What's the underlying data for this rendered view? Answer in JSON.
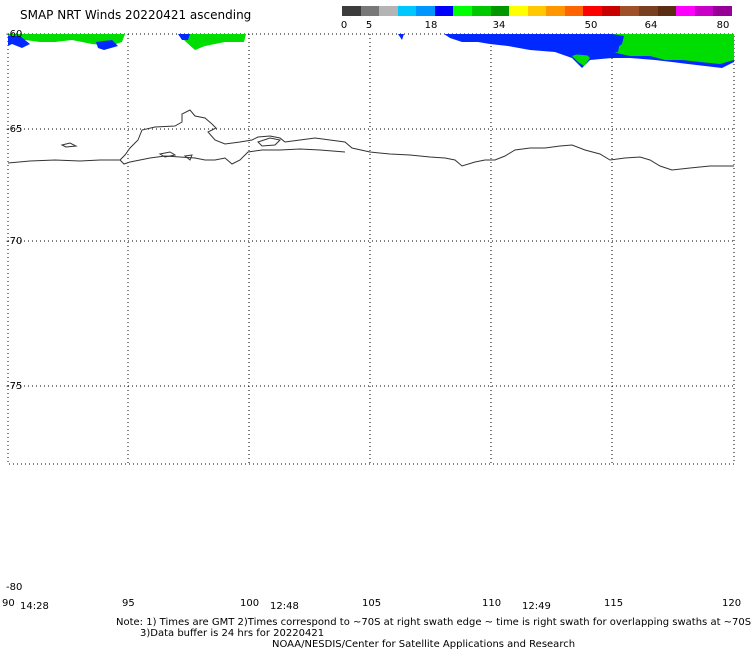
{
  "title": "SMAP NRT Winds 20220421 ascending",
  "legend": {
    "labels": [
      "0",
      "5",
      "18",
      "34",
      "50",
      "64",
      "80"
    ],
    "colors": [
      "#3c3c3c",
      "#787878",
      "#b4b4b4",
      "#00c8ff",
      "#0096ff",
      "#0000ff",
      "#00ff00",
      "#00c800",
      "#009600",
      "#ffff00",
      "#ffc800",
      "#ff9600",
      "#ff6400",
      "#ff0000",
      "#c80000",
      "#a05028",
      "#784020",
      "#5a2d14",
      "#ff00ff",
      "#c800c8",
      "#960096"
    ]
  },
  "map": {
    "lat_labels": [
      "-60",
      "-65",
      "-70",
      "-75",
      "-80"
    ],
    "lon_labels": [
      "90",
      "95",
      "100",
      "105",
      "110",
      "115",
      "120"
    ],
    "time_labels": [
      "14:28",
      "12:48",
      "12:49"
    ]
  },
  "notes": {
    "line1": "Note: 1) Times are GMT 2)Times correspond to ~70S at right swath edge ~ time is right swath for overlapping swaths at ~70S",
    "line2": "3)Data buffer is 24 hrs for 20220421",
    "line3": "NOAA/NESDIS/Center for Satellite Applications and Research"
  }
}
